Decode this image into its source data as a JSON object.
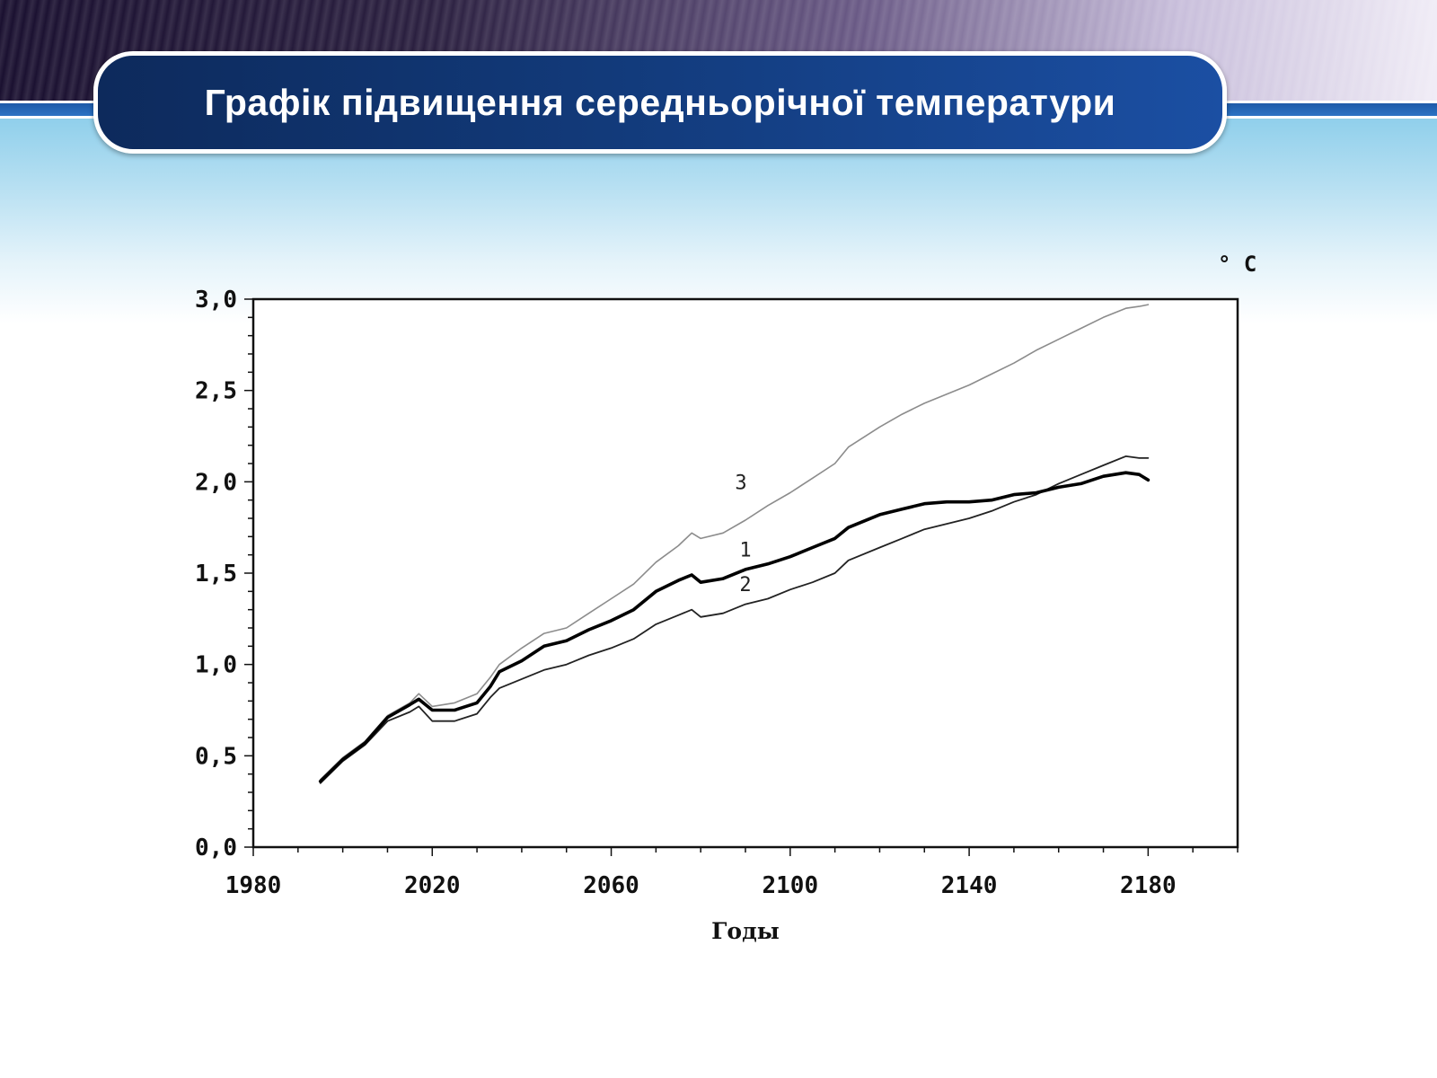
{
  "slide": {
    "title": "Графік підвищення середньорічної температури"
  },
  "chart_data": {
    "type": "line",
    "title": "",
    "xlabel": "Годы",
    "ylabel": "° C",
    "xlim": [
      1980,
      2200
    ],
    "ylim": [
      0,
      3.0
    ],
    "x_ticks": [
      "1980",
      "2020",
      "2060",
      "2100",
      "2140",
      "2180"
    ],
    "y_ticks": [
      "0,0",
      "0,5",
      "1,0",
      "1,5",
      "2,0",
      "2,5",
      "3,0"
    ],
    "grid": false,
    "legend": "none",
    "series": [
      {
        "name": "1",
        "color": "#000000",
        "points": [
          [
            1995,
            0.36
          ],
          [
            2000,
            0.48
          ],
          [
            2005,
            0.57
          ],
          [
            2010,
            0.71
          ],
          [
            2015,
            0.78
          ],
          [
            2017,
            0.81
          ],
          [
            2020,
            0.75
          ],
          [
            2025,
            0.75
          ],
          [
            2030,
            0.79
          ],
          [
            2033,
            0.88
          ],
          [
            2035,
            0.96
          ],
          [
            2040,
            1.02
          ],
          [
            2045,
            1.1
          ],
          [
            2050,
            1.13
          ],
          [
            2055,
            1.19
          ],
          [
            2060,
            1.24
          ],
          [
            2065,
            1.3
          ],
          [
            2070,
            1.4
          ],
          [
            2075,
            1.46
          ],
          [
            2078,
            1.49
          ],
          [
            2080,
            1.45
          ],
          [
            2085,
            1.47
          ],
          [
            2090,
            1.52
          ],
          [
            2095,
            1.55
          ],
          [
            2100,
            1.59
          ],
          [
            2105,
            1.64
          ],
          [
            2110,
            1.69
          ],
          [
            2113,
            1.75
          ],
          [
            2120,
            1.82
          ],
          [
            2125,
            1.85
          ],
          [
            2130,
            1.88
          ],
          [
            2135,
            1.89
          ],
          [
            2140,
            1.89
          ],
          [
            2145,
            1.9
          ],
          [
            2150,
            1.93
          ],
          [
            2155,
            1.94
          ],
          [
            2160,
            1.97
          ],
          [
            2165,
            1.99
          ],
          [
            2170,
            2.03
          ],
          [
            2175,
            2.05
          ],
          [
            2178,
            2.04
          ],
          [
            2180,
            2.01
          ]
        ]
      },
      {
        "name": "2",
        "color": "#222222",
        "points": [
          [
            1995,
            0.35
          ],
          [
            2000,
            0.47
          ],
          [
            2005,
            0.56
          ],
          [
            2010,
            0.69
          ],
          [
            2015,
            0.74
          ],
          [
            2017,
            0.77
          ],
          [
            2020,
            0.69
          ],
          [
            2025,
            0.69
          ],
          [
            2030,
            0.73
          ],
          [
            2033,
            0.82
          ],
          [
            2035,
            0.87
          ],
          [
            2040,
            0.92
          ],
          [
            2045,
            0.97
          ],
          [
            2050,
            1.0
          ],
          [
            2055,
            1.05
          ],
          [
            2060,
            1.09
          ],
          [
            2065,
            1.14
          ],
          [
            2070,
            1.22
          ],
          [
            2075,
            1.27
          ],
          [
            2078,
            1.3
          ],
          [
            2080,
            1.26
          ],
          [
            2085,
            1.28
          ],
          [
            2090,
            1.33
          ],
          [
            2095,
            1.36
          ],
          [
            2100,
            1.41
          ],
          [
            2105,
            1.45
          ],
          [
            2110,
            1.5
          ],
          [
            2113,
            1.57
          ],
          [
            2120,
            1.64
          ],
          [
            2125,
            1.69
          ],
          [
            2130,
            1.74
          ],
          [
            2135,
            1.77
          ],
          [
            2140,
            1.8
          ],
          [
            2145,
            1.84
          ],
          [
            2150,
            1.89
          ],
          [
            2155,
            1.93
          ],
          [
            2160,
            1.99
          ],
          [
            2165,
            2.04
          ],
          [
            2170,
            2.09
          ],
          [
            2175,
            2.14
          ],
          [
            2178,
            2.13
          ],
          [
            2180,
            2.13
          ]
        ]
      },
      {
        "name": "3",
        "color": "#8c8c8c",
        "points": [
          [
            1995,
            0.37
          ],
          [
            2000,
            0.49
          ],
          [
            2005,
            0.58
          ],
          [
            2010,
            0.72
          ],
          [
            2015,
            0.79
          ],
          [
            2017,
            0.84
          ],
          [
            2020,
            0.77
          ],
          [
            2025,
            0.79
          ],
          [
            2030,
            0.84
          ],
          [
            2033,
            0.93
          ],
          [
            2035,
            1.0
          ],
          [
            2040,
            1.09
          ],
          [
            2045,
            1.17
          ],
          [
            2050,
            1.2
          ],
          [
            2055,
            1.28
          ],
          [
            2060,
            1.36
          ],
          [
            2065,
            1.44
          ],
          [
            2070,
            1.56
          ],
          [
            2075,
            1.65
          ],
          [
            2078,
            1.72
          ],
          [
            2080,
            1.69
          ],
          [
            2085,
            1.72
          ],
          [
            2090,
            1.79
          ],
          [
            2095,
            1.87
          ],
          [
            2100,
            1.94
          ],
          [
            2105,
            2.02
          ],
          [
            2110,
            2.1
          ],
          [
            2113,
            2.19
          ],
          [
            2120,
            2.3
          ],
          [
            2125,
            2.37
          ],
          [
            2130,
            2.43
          ],
          [
            2135,
            2.48
          ],
          [
            2140,
            2.53
          ],
          [
            2145,
            2.59
          ],
          [
            2150,
            2.65
          ],
          [
            2155,
            2.72
          ],
          [
            2160,
            2.78
          ],
          [
            2165,
            2.84
          ],
          [
            2170,
            2.9
          ],
          [
            2175,
            2.95
          ],
          [
            2178,
            2.96
          ],
          [
            2180,
            2.97
          ]
        ]
      }
    ]
  }
}
